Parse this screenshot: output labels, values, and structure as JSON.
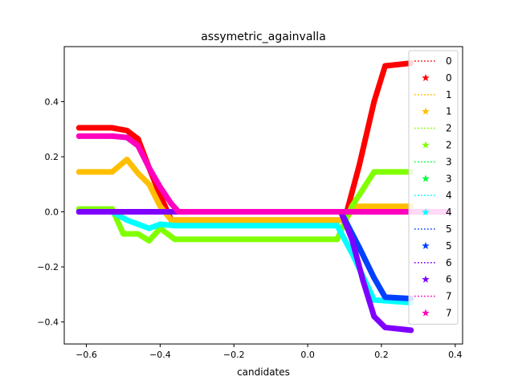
{
  "chart_data": {
    "type": "line",
    "title": "assymetric_againvalla",
    "xlabel": "candidates",
    "ylabel": "",
    "xlim": [
      -0.66,
      0.42
    ],
    "ylim": [
      -0.48,
      0.6
    ],
    "xticks": [
      -0.6,
      -0.4,
      -0.2,
      0.0,
      0.2,
      0.4
    ],
    "xtick_labels": [
      "−0.6",
      "−0.4",
      "−0.2",
      "0.0",
      "0.2",
      "0.4"
    ],
    "yticks": [
      -0.4,
      -0.2,
      0.0,
      0.2,
      0.4
    ],
    "ytick_labels": [
      "−0.4",
      "−0.2",
      "0.0",
      "0.2",
      "0.4"
    ],
    "grid": false,
    "legend_position": "right",
    "legend_entries": [
      {
        "label": "0",
        "series": 0,
        "style": "dotted"
      },
      {
        "label": "0",
        "series": 0,
        "style": "star"
      },
      {
        "label": "1",
        "series": 1,
        "style": "dotted"
      },
      {
        "label": "1",
        "series": 1,
        "style": "star"
      },
      {
        "label": "2",
        "series": 2,
        "style": "dotted"
      },
      {
        "label": "2",
        "series": 2,
        "style": "star"
      },
      {
        "label": "3",
        "series": 3,
        "style": "dotted"
      },
      {
        "label": "3",
        "series": 3,
        "style": "star"
      },
      {
        "label": "4",
        "series": 4,
        "style": "dotted"
      },
      {
        "label": "4",
        "series": 4,
        "style": "star"
      },
      {
        "label": "5",
        "series": 5,
        "style": "dotted"
      },
      {
        "label": "5",
        "series": 5,
        "style": "star"
      },
      {
        "label": "6",
        "series": 6,
        "style": "dotted"
      },
      {
        "label": "6",
        "series": 6,
        "style": "star"
      },
      {
        "label": "7",
        "series": 7,
        "style": "dotted"
      },
      {
        "label": "7",
        "series": 7,
        "style": "star"
      }
    ],
    "series": [
      {
        "color": "#ff0000",
        "points": [
          [
            -0.62,
            0.305
          ],
          [
            -0.53,
            0.305
          ],
          [
            -0.49,
            0.295
          ],
          [
            -0.46,
            0.265
          ],
          [
            -0.43,
            0.16
          ],
          [
            -0.4,
            0.06
          ],
          [
            -0.37,
            -0.03
          ],
          [
            0.1,
            -0.03
          ],
          [
            0.14,
            0.17
          ],
          [
            0.18,
            0.4
          ],
          [
            0.21,
            0.53
          ],
          [
            0.28,
            0.54
          ]
        ]
      },
      {
        "color": "#ffbf00",
        "points": [
          [
            -0.62,
            0.145
          ],
          [
            -0.53,
            0.145
          ],
          [
            -0.49,
            0.19
          ],
          [
            -0.46,
            0.14
          ],
          [
            -0.43,
            0.1
          ],
          [
            -0.4,
            0.02
          ],
          [
            -0.37,
            -0.03
          ],
          [
            0.1,
            -0.03
          ],
          [
            0.13,
            0.02
          ],
          [
            0.28,
            0.02
          ]
        ]
      },
      {
        "color": "#80ff00",
        "points": [
          [
            -0.62,
            0.01
          ],
          [
            -0.53,
            0.01
          ],
          [
            -0.5,
            -0.08
          ],
          [
            -0.46,
            -0.08
          ],
          [
            -0.43,
            -0.105
          ],
          [
            -0.4,
            -0.06
          ],
          [
            -0.36,
            -0.1
          ],
          [
            0.08,
            -0.1
          ],
          [
            0.12,
            0.02
          ],
          [
            0.18,
            0.145
          ],
          [
            0.28,
            0.145
          ]
        ]
      },
      {
        "color": "#00ff40",
        "points": [
          [
            -0.62,
            0.0
          ],
          [
            0.28,
            0.0
          ]
        ]
      },
      {
        "color": "#00ffff",
        "points": [
          [
            -0.62,
            0.0
          ],
          [
            -0.53,
            0.0
          ],
          [
            -0.49,
            -0.03
          ],
          [
            -0.43,
            -0.06
          ],
          [
            -0.4,
            -0.045
          ],
          [
            -0.36,
            -0.05
          ],
          [
            0.08,
            -0.05
          ],
          [
            0.12,
            -0.15
          ],
          [
            0.18,
            -0.32
          ],
          [
            0.28,
            -0.33
          ]
        ]
      },
      {
        "color": "#0040ff",
        "points": [
          [
            -0.62,
            0.0
          ],
          [
            0.09,
            0.0
          ],
          [
            0.14,
            -0.13
          ],
          [
            0.18,
            -0.24
          ],
          [
            0.21,
            -0.31
          ],
          [
            0.28,
            -0.315
          ]
        ]
      },
      {
        "color": "#8000ff",
        "points": [
          [
            -0.62,
            0.0
          ],
          [
            0.09,
            0.0
          ],
          [
            0.12,
            -0.1
          ],
          [
            0.15,
            -0.25
          ],
          [
            0.18,
            -0.38
          ],
          [
            0.21,
            -0.42
          ],
          [
            0.28,
            -0.43
          ]
        ]
      },
      {
        "color": "#ff00bf",
        "points": [
          [
            -0.62,
            0.275
          ],
          [
            -0.53,
            0.275
          ],
          [
            -0.49,
            0.27
          ],
          [
            -0.46,
            0.24
          ],
          [
            -0.43,
            0.16
          ],
          [
            -0.4,
            0.09
          ],
          [
            -0.37,
            0.03
          ],
          [
            -0.35,
            0.0
          ],
          [
            0.38,
            0.0
          ]
        ]
      }
    ]
  }
}
